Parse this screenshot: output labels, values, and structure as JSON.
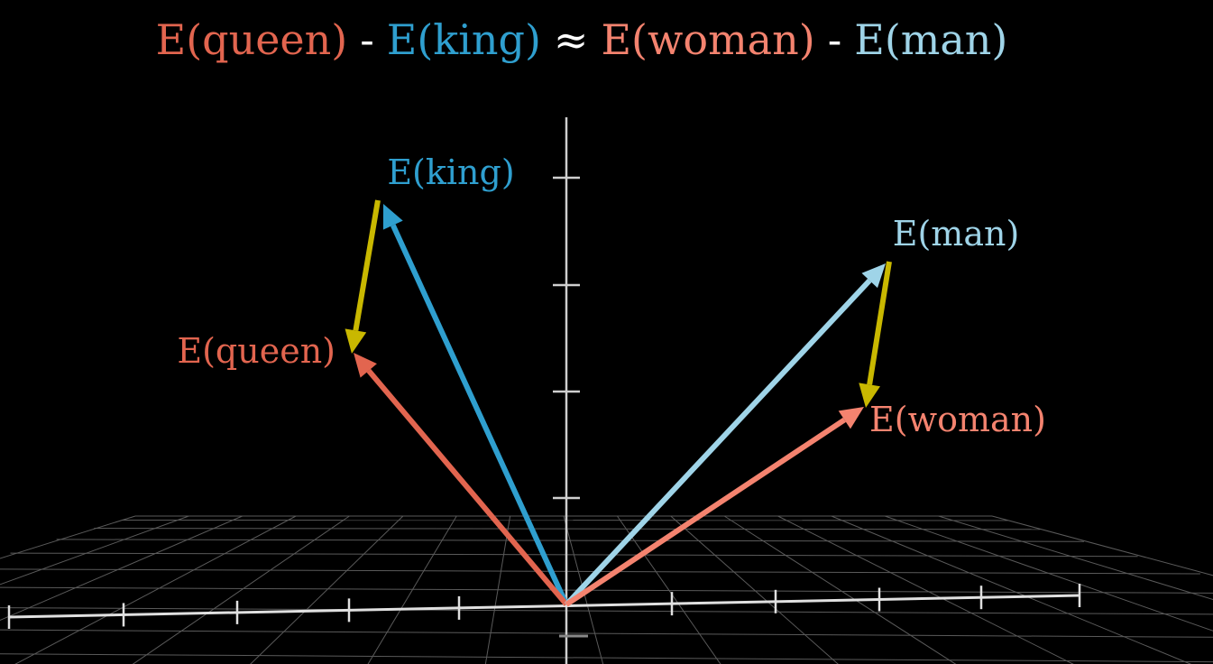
{
  "equation": {
    "terms": [
      {
        "text": "E(queen)",
        "color": "#e2654f"
      },
      {
        "text": "-",
        "color": "#ffffff"
      },
      {
        "text": "E(king)",
        "color": "#2f9fcf"
      },
      {
        "text": "≈",
        "color": "#ffffff"
      },
      {
        "text": "E(woman)",
        "color": "#f4836f"
      },
      {
        "text": "-",
        "color": "#ffffff"
      },
      {
        "text": "E(man)",
        "color": "#9fd4e8"
      }
    ]
  },
  "vectors": [
    {
      "label": "E(king)",
      "color": "#2f9fcf"
    },
    {
      "label": "E(queen)",
      "color": "#e2654f"
    },
    {
      "label": "E(man)",
      "color": "#9fd4e8"
    },
    {
      "label": "E(woman)",
      "color": "#f4836f"
    }
  ]
}
